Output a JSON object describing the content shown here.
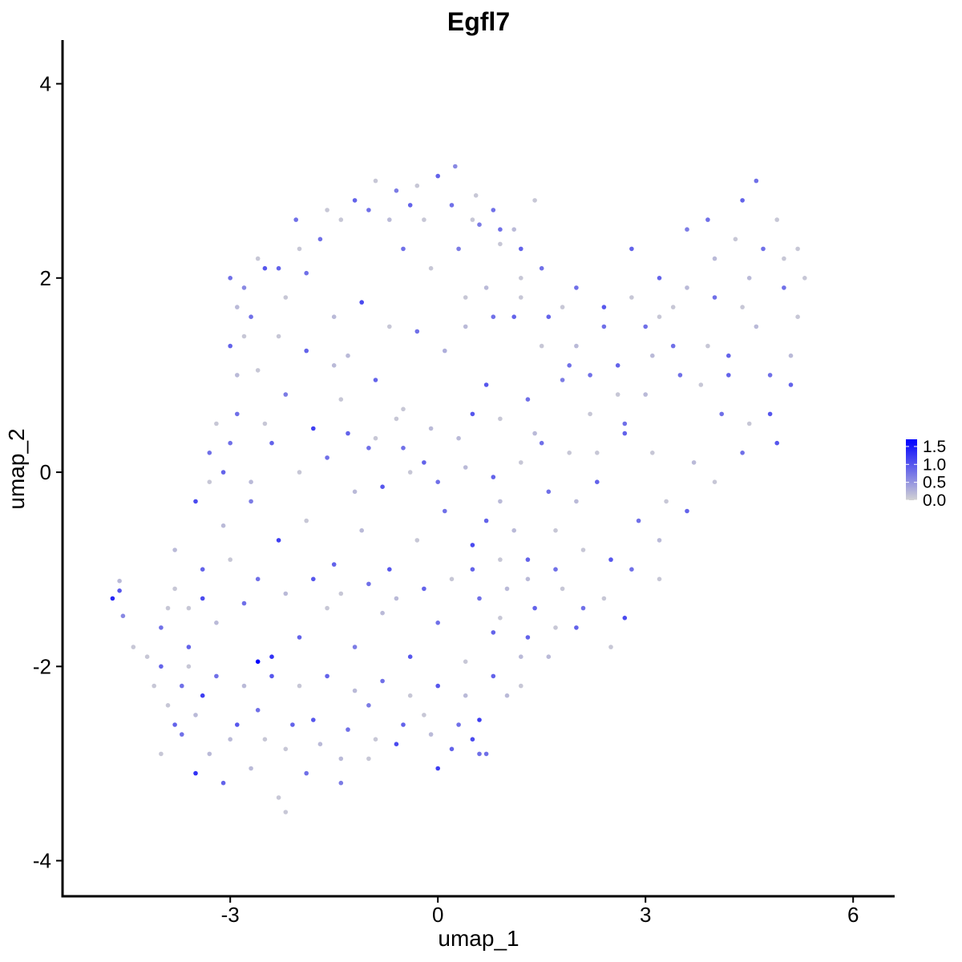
{
  "chart_data": {
    "type": "scatter",
    "title": "Egfl7",
    "xlabel": "umap_1",
    "ylabel": "umap_2",
    "xlim": [
      -5.4,
      6.6
    ],
    "ylim": [
      -4.35,
      4.45
    ],
    "x_ticks": [
      -3,
      0,
      3,
      6
    ],
    "x_tick_labels": [
      "-3",
      "0",
      "3",
      "6"
    ],
    "y_ticks": [
      -4,
      -2,
      0,
      2,
      4
    ],
    "y_tick_labels": [
      "-4",
      "-2",
      "0",
      "2",
      "4"
    ],
    "grid": false,
    "legend": {
      "placement": "right",
      "type": "colorbar",
      "min": 0.0,
      "max": 1.7,
      "ticks": [
        0.0,
        0.5,
        1.0,
        1.5
      ],
      "tick_labels": [
        "0.0",
        "0.5",
        "1.0",
        "1.5"
      ],
      "low_color": "#d3d3d3",
      "high_color": "#0000ff"
    },
    "colors": {
      "low": "#d3d3d3",
      "high": "#0000ff"
    },
    "points": [
      [
        -4.7,
        -1.3,
        1.4
      ],
      [
        -4.6,
        -1.22,
        1.0
      ],
      [
        -4.55,
        -1.48,
        0.6
      ],
      [
        -4.6,
        -1.12,
        0.2
      ],
      [
        -4.4,
        -1.8,
        0.1
      ],
      [
        -2.05,
        2.6,
        0.8
      ],
      [
        -1.6,
        2.7,
        0.1
      ],
      [
        -1.2,
        2.8,
        0.9
      ],
      [
        -0.9,
        3.0,
        0.1
      ],
      [
        -0.6,
        2.9,
        0.7
      ],
      [
        -0.3,
        2.95,
        0.1
      ],
      [
        0.0,
        3.05,
        0.9
      ],
      [
        0.25,
        3.15,
        0.6
      ],
      [
        0.55,
        2.85,
        0.1
      ],
      [
        0.8,
        2.7,
        0.8
      ],
      [
        1.1,
        2.5,
        0.2
      ],
      [
        1.4,
        2.8,
        0.1
      ],
      [
        1.2,
        2.3,
        0.9
      ],
      [
        0.9,
        2.35,
        0.1
      ],
      [
        0.6,
        2.55,
        0.7
      ],
      [
        -2.5,
        2.1,
        1.0
      ],
      [
        -2.8,
        1.9,
        0.6
      ],
      [
        -2.2,
        1.8,
        0.1
      ],
      [
        -1.9,
        2.05,
        0.8
      ],
      [
        -1.5,
        1.6,
        0.2
      ],
      [
        -1.1,
        1.75,
        1.1
      ],
      [
        -0.7,
        1.5,
        0.1
      ],
      [
        -0.3,
        1.45,
        0.8
      ],
      [
        0.1,
        1.25,
        0.3
      ],
      [
        0.4,
        1.8,
        0.1
      ],
      [
        -3.0,
        1.3,
        0.9
      ],
      [
        -2.6,
        1.05,
        0.1
      ],
      [
        -2.2,
        0.8,
        0.7
      ],
      [
        -1.8,
        0.45,
        1.2
      ],
      [
        -1.4,
        0.75,
        0.1
      ],
      [
        -1.0,
        0.25,
        0.8
      ],
      [
        -0.6,
        0.55,
        0.1
      ],
      [
        -0.2,
        0.1,
        0.9
      ],
      [
        0.3,
        0.35,
        0.2
      ],
      [
        0.7,
        0.9,
        1.0
      ],
      [
        -3.3,
        0.2,
        0.8
      ],
      [
        -3.5,
        -0.3,
        1.1
      ],
      [
        -3.1,
        -0.55,
        0.2
      ],
      [
        -2.7,
        -0.3,
        0.7
      ],
      [
        -2.3,
        -0.7,
        1.2
      ],
      [
        -1.9,
        -0.5,
        0.1
      ],
      [
        -1.5,
        -0.95,
        0.9
      ],
      [
        -1.1,
        -0.6,
        0.2
      ],
      [
        -0.7,
        -1.0,
        1.0
      ],
      [
        -0.3,
        -0.7,
        0.1
      ],
      [
        0.1,
        -0.4,
        0.8
      ],
      [
        0.5,
        -0.75,
        1.1
      ],
      [
        0.9,
        -0.3,
        0.2
      ],
      [
        1.3,
        -0.9,
        0.9
      ],
      [
        1.7,
        -0.6,
        0.1
      ],
      [
        -3.9,
        -1.4,
        0.1
      ],
      [
        -3.6,
        -1.8,
        0.9
      ],
      [
        -3.2,
        -1.55,
        0.2
      ],
      [
        -2.8,
        -1.35,
        0.8
      ],
      [
        -2.4,
        -1.9,
        1.3
      ],
      [
        -2.6,
        -1.95,
        1.7
      ],
      [
        -2.0,
        -1.7,
        0.9
      ],
      [
        -1.6,
        -1.4,
        0.1
      ],
      [
        -1.2,
        -1.8,
        0.7
      ],
      [
        -0.8,
        -1.45,
        0.2
      ],
      [
        -0.4,
        -1.9,
        1.0
      ],
      [
        0.0,
        -1.55,
        0.8
      ],
      [
        0.4,
        -1.95,
        0.1
      ],
      [
        0.8,
        -1.65,
        0.9
      ],
      [
        1.2,
        -1.9,
        0.2
      ],
      [
        -4.1,
        -2.2,
        0.1
      ],
      [
        -3.8,
        -2.6,
        0.9
      ],
      [
        -3.4,
        -2.3,
        1.2
      ],
      [
        -3.0,
        -2.75,
        0.2
      ],
      [
        -2.6,
        -2.45,
        0.8
      ],
      [
        -2.2,
        -2.85,
        0.1
      ],
      [
        -1.8,
        -2.55,
        1.0
      ],
      [
        -1.4,
        -2.95,
        0.2
      ],
      [
        -1.0,
        -2.4,
        0.7
      ],
      [
        -0.6,
        -2.8,
        1.1
      ],
      [
        -0.2,
        -2.5,
        0.1
      ],
      [
        0.2,
        -2.85,
        0.9
      ],
      [
        0.6,
        -2.55,
        1.2
      ],
      [
        1.0,
        -2.3,
        0.2
      ],
      [
        0.7,
        -2.9,
        0.8
      ],
      [
        -3.5,
        -3.1,
        1.3
      ],
      [
        -3.1,
        -3.2,
        0.9
      ],
      [
        -2.7,
        -3.05,
        0.2
      ],
      [
        -2.3,
        -3.35,
        0.1
      ],
      [
        -2.2,
        -3.5,
        0.1
      ],
      [
        -1.9,
        -3.1,
        0.8
      ],
      [
        -1.4,
        -3.2,
        0.7
      ],
      [
        -1.0,
        -2.95,
        0.1
      ],
      [
        0.0,
        -3.05,
        1.2
      ],
      [
        0.6,
        -2.9,
        0.8
      ],
      [
        2.0,
        1.9,
        0.8
      ],
      [
        2.4,
        1.7,
        1.0
      ],
      [
        2.8,
        2.3,
        0.9
      ],
      [
        3.2,
        1.6,
        0.1
      ],
      [
        3.6,
        2.5,
        0.7
      ],
      [
        4.0,
        2.2,
        0.2
      ],
      [
        4.4,
        2.8,
        0.9
      ],
      [
        4.6,
        3.0,
        0.8
      ],
      [
        4.9,
        2.6,
        0.1
      ],
      [
        5.2,
        2.3,
        0.1
      ],
      [
        5.0,
        1.9,
        0.8
      ],
      [
        4.6,
        1.5,
        0.2
      ],
      [
        4.2,
        1.2,
        0.9
      ],
      [
        3.8,
        0.9,
        0.1
      ],
      [
        3.4,
        1.3,
        0.8
      ],
      [
        3.0,
        0.8,
        0.2
      ],
      [
        2.6,
        1.1,
        0.9
      ],
      [
        2.2,
        0.6,
        0.1
      ],
      [
        1.8,
        0.95,
        0.7
      ],
      [
        1.4,
        0.4,
        0.2
      ],
      [
        4.8,
        0.6,
        1.0
      ],
      [
        4.4,
        0.2,
        0.8
      ],
      [
        4.0,
        -0.1,
        0.1
      ],
      [
        3.6,
        -0.4,
        0.9
      ],
      [
        3.2,
        -0.7,
        0.2
      ],
      [
        2.8,
        -1.0,
        0.8
      ],
      [
        2.4,
        -1.3,
        0.1
      ],
      [
        2.0,
        -1.6,
        0.9
      ],
      [
        1.6,
        -1.9,
        0.2
      ],
      [
        1.2,
        -2.2,
        0.1
      ],
      [
        5.1,
        0.9,
        0.9
      ],
      [
        4.9,
        0.3,
        1.0
      ],
      [
        4.5,
        0.5,
        0.1
      ],
      [
        4.1,
        0.6,
        0.8
      ],
      [
        3.7,
        0.1,
        0.2
      ],
      [
        3.3,
        -0.3,
        0.1
      ],
      [
        2.9,
        -0.5,
        0.8
      ],
      [
        2.5,
        -0.9,
        1.0
      ],
      [
        2.7,
        -1.5,
        1.1
      ],
      [
        3.2,
        -1.1,
        0.1
      ],
      [
        -0.5,
        2.3,
        0.8
      ],
      [
        -0.1,
        2.1,
        0.1
      ],
      [
        0.3,
        2.3,
        0.7
      ],
      [
        0.7,
        1.9,
        0.2
      ],
      [
        1.1,
        1.6,
        0.9
      ],
      [
        1.5,
        1.3,
        0.1
      ],
      [
        1.9,
        1.1,
        0.8
      ],
      [
        -1.3,
        1.2,
        0.2
      ],
      [
        -0.9,
        0.95,
        0.9
      ],
      [
        -0.5,
        0.65,
        0.1
      ],
      [
        -2.4,
        0.3,
        0.9
      ],
      [
        -2.0,
        0.0,
        0.1
      ],
      [
        -1.6,
        0.15,
        0.8
      ],
      [
        -1.2,
        -0.2,
        0.2
      ],
      [
        -0.8,
        -0.15,
        1.0
      ],
      [
        -0.4,
        0.0,
        0.1
      ],
      [
        0.0,
        -0.1,
        0.8
      ],
      [
        0.4,
        0.05,
        0.2
      ],
      [
        0.8,
        -0.05,
        0.9
      ],
      [
        1.2,
        0.1,
        0.1
      ],
      [
        1.6,
        -0.2,
        0.8
      ],
      [
        2.0,
        -0.3,
        0.2
      ],
      [
        2.3,
        0.2,
        0.1
      ],
      [
        2.7,
        0.4,
        0.9
      ],
      [
        3.1,
        0.2,
        0.1
      ],
      [
        -3.8,
        -0.8,
        0.2
      ],
      [
        -3.4,
        -1.0,
        0.9
      ],
      [
        -3.0,
        -0.9,
        0.1
      ],
      [
        -2.6,
        -1.1,
        0.8
      ],
      [
        -2.2,
        -1.25,
        0.2
      ],
      [
        -1.8,
        -1.1,
        1.0
      ],
      [
        -1.4,
        -1.25,
        0.1
      ],
      [
        -1.0,
        -1.15,
        0.8
      ],
      [
        -0.6,
        -1.3,
        0.2
      ],
      [
        -0.2,
        -1.2,
        0.9
      ],
      [
        0.2,
        -1.1,
        0.1
      ],
      [
        0.6,
        -1.3,
        0.8
      ],
      [
        1.0,
        -1.2,
        0.2
      ],
      [
        1.4,
        -1.4,
        0.9
      ],
      [
        1.8,
        -1.2,
        0.1
      ],
      [
        -3.6,
        -2.0,
        0.1
      ],
      [
        -3.2,
        -2.1,
        0.8
      ],
      [
        -2.8,
        -2.2,
        0.2
      ],
      [
        -2.4,
        -2.1,
        1.0
      ],
      [
        -2.0,
        -2.2,
        0.1
      ],
      [
        -1.6,
        -2.1,
        0.9
      ],
      [
        -1.2,
        -2.25,
        0.2
      ],
      [
        -0.8,
        -2.15,
        0.8
      ],
      [
        -0.4,
        -2.3,
        0.1
      ],
      [
        0.0,
        -2.2,
        1.0
      ],
      [
        0.4,
        -2.3,
        0.2
      ],
      [
        0.8,
        -2.1,
        0.9
      ],
      [
        -4.0,
        -2.9,
        0.1
      ],
      [
        -3.7,
        -2.7,
        0.8
      ],
      [
        -3.3,
        -2.9,
        0.2
      ],
      [
        -2.9,
        -2.6,
        1.0
      ],
      [
        -2.5,
        -2.75,
        0.1
      ],
      [
        -2.1,
        -2.6,
        0.9
      ],
      [
        -1.7,
        -2.8,
        0.2
      ],
      [
        -1.3,
        -2.65,
        0.8
      ],
      [
        -0.9,
        -2.75,
        0.1
      ],
      [
        -0.5,
        -2.6,
        0.9
      ],
      [
        -0.1,
        -2.7,
        0.2
      ],
      [
        0.3,
        -2.6,
        0.8
      ],
      [
        0.5,
        -2.75,
        1.1
      ],
      [
        -2.7,
        1.6,
        0.8
      ],
      [
        -2.3,
        1.4,
        0.1
      ],
      [
        -1.9,
        1.25,
        0.9
      ],
      [
        -1.5,
        1.1,
        0.2
      ],
      [
        -2.9,
        0.6,
        0.8
      ],
      [
        -2.5,
        0.5,
        0.1
      ],
      [
        -3.1,
        0.0,
        0.9
      ],
      [
        -2.7,
        -0.1,
        0.2
      ],
      [
        -1.3,
        0.4,
        0.9
      ],
      [
        -0.9,
        0.35,
        0.1
      ],
      [
        -0.5,
        0.25,
        0.8
      ],
      [
        -0.1,
        0.45,
        0.2
      ],
      [
        0.5,
        0.6,
        1.0
      ],
      [
        0.9,
        0.55,
        0.1
      ],
      [
        1.3,
        0.75,
        0.8
      ],
      [
        5.3,
        2.0,
        0.1
      ],
      [
        5.2,
        1.6,
        0.1
      ],
      [
        5.1,
        1.2,
        0.2
      ],
      [
        4.8,
        1.0,
        0.8
      ],
      [
        4.4,
        1.7,
        0.1
      ],
      [
        4.0,
        1.8,
        0.8
      ],
      [
        3.6,
        1.9,
        0.2
      ],
      [
        3.2,
        2.0,
        0.9
      ],
      [
        2.8,
        1.8,
        0.1
      ],
      [
        2.4,
        1.5,
        0.8
      ],
      [
        2.0,
        1.3,
        0.2
      ],
      [
        1.6,
        1.6,
        0.9
      ],
      [
        1.2,
        1.8,
        0.1
      ],
      [
        0.8,
        1.6,
        0.8
      ],
      [
        0.4,
        1.5,
        0.2
      ],
      [
        3.9,
        2.6,
        0.8
      ],
      [
        4.3,
        2.4,
        0.1
      ],
      [
        4.7,
        2.3,
        0.8
      ],
      [
        5.0,
        2.2,
        0.1
      ],
      [
        4.5,
        2.0,
        0.2
      ],
      [
        4.2,
        1.0,
        0.9
      ],
      [
        3.9,
        1.3,
        0.1
      ],
      [
        3.5,
        1.0,
        0.8
      ],
      [
        3.1,
        1.2,
        0.2
      ],
      [
        2.7,
        0.5,
        0.8
      ],
      [
        2.3,
        -0.1,
        0.9
      ],
      [
        1.9,
        0.2,
        0.1
      ],
      [
        1.5,
        0.3,
        0.8
      ],
      [
        1.1,
        -0.6,
        0.2
      ],
      [
        0.7,
        -0.5,
        0.9
      ],
      [
        2.1,
        -0.8,
        0.1
      ],
      [
        1.7,
        -1.0,
        0.8
      ],
      [
        1.3,
        -1.1,
        0.2
      ],
      [
        0.9,
        -0.9,
        0.1
      ],
      [
        0.5,
        -1.0,
        0.9
      ],
      [
        2.5,
        -1.8,
        0.1
      ],
      [
        2.1,
        -1.4,
        0.8
      ],
      [
        1.7,
        -1.6,
        0.1
      ],
      [
        1.3,
        -1.7,
        0.9
      ],
      [
        0.9,
        -1.5,
        0.1
      ],
      [
        -3.8,
        -1.2,
        0.1
      ],
      [
        -4.0,
        -1.6,
        0.8
      ],
      [
        -4.2,
        -1.9,
        0.1
      ],
      [
        -4.0,
        -2.0,
        0.9
      ],
      [
        -3.9,
        -2.4,
        0.1
      ],
      [
        -3.7,
        -2.2,
        0.8
      ],
      [
        -3.5,
        -2.5,
        0.2
      ],
      [
        -3.6,
        -1.4,
        0.1
      ],
      [
        -3.4,
        -1.3,
        1.1
      ],
      [
        -3.3,
        -0.1,
        0.1
      ],
      [
        -3.2,
        0.5,
        0.1
      ],
      [
        -3.0,
        0.3,
        0.8
      ],
      [
        -2.9,
        1.0,
        0.2
      ],
      [
        -2.8,
        1.4,
        0.1
      ],
      [
        -3.0,
        2.0,
        0.8
      ],
      [
        -2.9,
        1.7,
        0.2
      ],
      [
        -2.6,
        2.2,
        0.1
      ],
      [
        -2.3,
        2.1,
        0.9
      ],
      [
        -2.0,
        2.3,
        0.1
      ],
      [
        -1.7,
        2.4,
        0.8
      ],
      [
        -1.4,
        2.6,
        0.1
      ],
      [
        -1.0,
        2.7,
        0.8
      ],
      [
        -0.7,
        2.6,
        0.2
      ],
      [
        -0.4,
        2.75,
        0.9
      ],
      [
        -0.2,
        2.6,
        0.1
      ],
      [
        0.2,
        2.75,
        0.8
      ],
      [
        0.5,
        2.6,
        0.1
      ],
      [
        0.9,
        2.5,
        0.8
      ],
      [
        1.2,
        2.0,
        0.1
      ],
      [
        1.5,
        2.1,
        0.8
      ],
      [
        1.8,
        1.7,
        0.1
      ],
      [
        2.2,
        1.0,
        0.8
      ],
      [
        2.6,
        0.8,
        0.1
      ],
      [
        3.0,
        1.5,
        0.8
      ],
      [
        3.4,
        1.7,
        0.1
      ]
    ]
  }
}
